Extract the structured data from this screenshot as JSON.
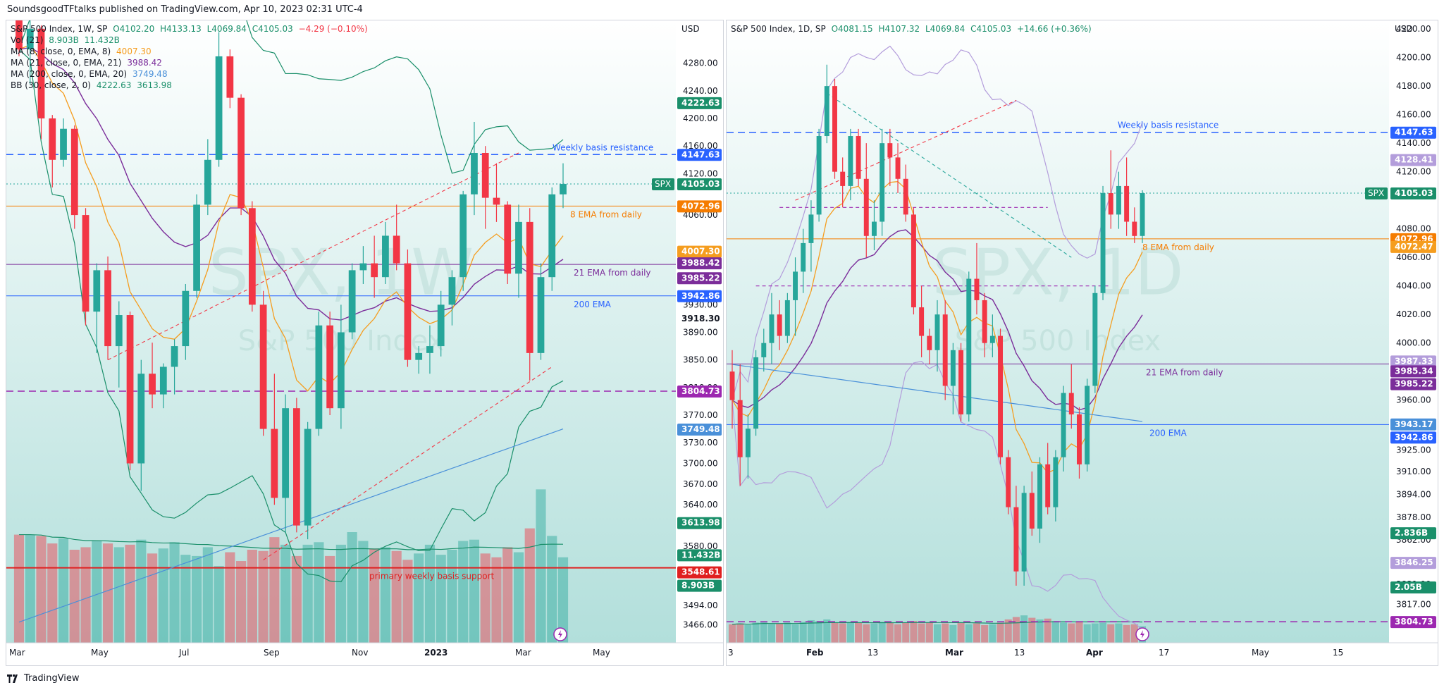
{
  "header": {
    "publisher": "SoundsgoodTFtalks published on TradingView.com, Apr 10, 2023 02:31 UTC-4"
  },
  "footer": {
    "brand": "TradingView"
  },
  "colors": {
    "up": "#26a69a",
    "down": "#f23645",
    "bg_top": "#ffffff",
    "bg_bottom": "#b2dfdb",
    "ema8": "#f59d1f",
    "ema21": "#7b2d9a",
    "ema200": "#4a90d9",
    "bb": "#1a8f6a",
    "resistance": "#2962ff",
    "support_red": "#e02020",
    "purple_dash": "#9c27b0"
  },
  "chart_data": [
    {
      "type": "candlestick",
      "symbol": "S&P 500 Index, 1W, SP",
      "ohlc_readout": {
        "O": "4102.20",
        "H": "4133.13",
        "L": "4069.84",
        "C": "4105.03",
        "change": "−4.29 (−0.10%)"
      },
      "indicators": [
        {
          "label": "Vol (21)",
          "values": [
            "8.903B",
            "11.432B"
          ]
        },
        {
          "label": "MA (8, close, 0, EMA, 8)",
          "values": [
            "4007.30"
          ]
        },
        {
          "label": "MA (21, close, 0, EMA, 21)",
          "values": [
            "3988.42"
          ]
        },
        {
          "label": "MA (200, close, 0, EMA, 20)",
          "values": [
            "3749.48"
          ]
        },
        {
          "label": "BB (30, close, 2, 0)",
          "values": [
            "4222.63",
            "3613.98"
          ]
        }
      ],
      "currency": "USD",
      "watermark": {
        "big": "SPX, 1W",
        "small": "S&P 500 Index"
      },
      "ylim": [
        3440,
        4340
      ],
      "y_ticks": [
        4280,
        4240,
        4200,
        4160,
        4120,
        4060,
        3930,
        3890,
        3850,
        3810,
        3770,
        3730,
        3700,
        3670,
        3640,
        3610,
        3580,
        3494,
        3466
      ],
      "x_ticks": [
        "Mar",
        "May",
        "Jul",
        "Sep",
        "Nov",
        "2023",
        "Mar",
        "May"
      ],
      "price_badges": [
        {
          "value": "4222.63",
          "color": "#1a8f6a"
        },
        {
          "value": "4147.63",
          "color": "#2962ff"
        },
        {
          "value": "4105.03",
          "color": "#1a8f6a",
          "tag": "SPX"
        },
        {
          "value": "4072.96",
          "color": "#f57c00"
        },
        {
          "value": "4007.30",
          "color": "#f59d1f"
        },
        {
          "value": "3988.42",
          "color": "#7b2d9a"
        },
        {
          "value": "3985.22",
          "color": "#7b2d9a"
        },
        {
          "value": "3942.86",
          "color": "#2962ff"
        },
        {
          "value": "3918.30",
          "color": "#ffffff"
        },
        {
          "value": "3804.73",
          "color": "#9c27b0"
        },
        {
          "value": "3749.48",
          "color": "#4a90d9"
        },
        {
          "value": "3613.98",
          "color": "#1a8f6a"
        },
        {
          "value": "11.432B",
          "color": "#1a8f6a"
        },
        {
          "value": "3548.61",
          "color": "#e02020"
        },
        {
          "value": "8.903B",
          "color": "#1a8f6a"
        }
      ],
      "annotations": [
        {
          "text": "Weekly basis resistance",
          "y": 4147.63,
          "color": "#2962ff"
        },
        {
          "text": "8 EMA from daily",
          "y": 4072.96,
          "color": "#f57c00"
        },
        {
          "text": "21 EMA from daily",
          "y": 3988.42,
          "color": "#7b2d9a"
        },
        {
          "text": "200 EMA",
          "y": 3942.86,
          "color": "#2962ff"
        },
        {
          "text": "primary weekly basis support",
          "y": 3548.61,
          "color": "#e02020"
        }
      ],
      "candles": [
        [
          4380,
          4420,
          4290,
          4300
        ],
        [
          4300,
          4345,
          4250,
          4330
        ],
        [
          4330,
          4335,
          4170,
          4200
        ],
        [
          4200,
          4205,
          4100,
          4140
        ],
        [
          4140,
          4200,
          4130,
          4185
        ],
        [
          4185,
          4190,
          4040,
          4060
        ],
        [
          4060,
          4070,
          3900,
          3920
        ],
        [
          3920,
          3990,
          3860,
          3980
        ],
        [
          3980,
          4000,
          3850,
          3870
        ],
        [
          3870,
          3935,
          3810,
          3915
        ],
        [
          3915,
          3920,
          3690,
          3700
        ],
        [
          3700,
          3850,
          3660,
          3830
        ],
        [
          3830,
          3875,
          3780,
          3800
        ],
        [
          3800,
          3845,
          3780,
          3840
        ],
        [
          3840,
          3880,
          3800,
          3870
        ],
        [
          3870,
          3960,
          3850,
          3950
        ],
        [
          3950,
          4090,
          3940,
          4075
        ],
        [
          4075,
          4170,
          4060,
          4140
        ],
        [
          4140,
          4325,
          4130,
          4290
        ],
        [
          4290,
          4300,
          4215,
          4230
        ],
        [
          4230,
          4235,
          4060,
          4070
        ],
        [
          4070,
          4080,
          3920,
          3930
        ],
        [
          3930,
          3950,
          3740,
          3750
        ],
        [
          3750,
          3830,
          3640,
          3650
        ],
        [
          3650,
          3800,
          3600,
          3780
        ],
        [
          3780,
          3795,
          3600,
          3610
        ],
        [
          3610,
          3760,
          3590,
          3750
        ],
        [
          3750,
          3920,
          3740,
          3900
        ],
        [
          3900,
          3920,
          3770,
          3780
        ],
        [
          3780,
          3930,
          3750,
          3890
        ],
        [
          3890,
          3990,
          3880,
          3980
        ],
        [
          3980,
          4015,
          3960,
          3990
        ],
        [
          3990,
          4030,
          3940,
          3970
        ],
        [
          3970,
          4050,
          3960,
          4030
        ],
        [
          4030,
          4075,
          3980,
          3990
        ],
        [
          3990,
          4010,
          3840,
          3850
        ],
        [
          3850,
          3870,
          3830,
          3860
        ],
        [
          3860,
          3900,
          3830,
          3870
        ],
        [
          3870,
          3950,
          3855,
          3930
        ],
        [
          3930,
          3980,
          3900,
          3970
        ],
        [
          3970,
          4095,
          3950,
          4090
        ],
        [
          4090,
          4195,
          4060,
          4150
        ],
        [
          4150,
          4160,
          4040,
          4085
        ],
        [
          4085,
          4135,
          4050,
          4075
        ],
        [
          4075,
          4080,
          3960,
          3975
        ],
        [
          3975,
          4075,
          3940,
          4050
        ],
        [
          4050,
          4070,
          3820,
          3860
        ],
        [
          3860,
          3990,
          3850,
          3970
        ],
        [
          3970,
          4100,
          3950,
          4090
        ],
        [
          4090,
          4135,
          4070,
          4105
        ]
      ],
      "volumes": [
        8.6,
        8.6,
        8.5,
        7.9,
        8.3,
        7.4,
        7.6,
        8.1,
        7.9,
        7.6,
        7.8,
        8.2,
        7.1,
        7.5,
        8.0,
        7.0,
        6.9,
        7.6,
        6.1,
        7.2,
        6.5,
        7.4,
        7.3,
        8.4,
        7.8,
        6.9,
        7.8,
        8.0,
        6.9,
        7.8,
        8.8,
        8.1,
        7.5,
        7.6,
        7.3,
        6.6,
        7.1,
        7.8,
        7.0,
        7.4,
        8.1,
        8.2,
        7.1,
        6.8,
        7.6,
        7.2,
        9.1,
        12.2,
        8.5,
        6.8
      ]
    },
    {
      "type": "candlestick",
      "symbol": "S&P 500 Index, 1D, SP",
      "ohlc_readout": {
        "O": "4081.15",
        "H": "4107.32",
        "L": "4069.84",
        "C": "4105.03",
        "change": "+14.66 (+0.36%)"
      },
      "currency": "USD",
      "watermark": {
        "big": "SPX, 1D",
        "small": "S&P 500 Index"
      },
      "ylim": [
        3790,
        4225
      ],
      "y_ticks": [
        4220,
        4200,
        4180,
        4160,
        4140,
        4120,
        4080,
        4060,
        4040,
        4020,
        4000,
        3960,
        3925,
        3910,
        3894,
        3878,
        3862,
        3831,
        3817
      ],
      "x_ticks": [
        "3",
        "Feb",
        "13",
        "Mar",
        "13",
        "Apr",
        "17",
        "May",
        "15"
      ],
      "price_badges": [
        {
          "value": "4147.63",
          "color": "#2962ff"
        },
        {
          "value": "4128.41",
          "color": "#b39ddb"
        },
        {
          "value": "4105.03",
          "color": "#1a8f6a",
          "tag": "SPX"
        },
        {
          "value": "4072.96",
          "color": "#f57c00"
        },
        {
          "value": "4072.47",
          "color": "#f59d1f"
        },
        {
          "value": "3987.33",
          "color": "#b39ddb"
        },
        {
          "value": "3985.34",
          "color": "#7b2d9a"
        },
        {
          "value": "3985.22",
          "color": "#7b2d9a"
        },
        {
          "value": "3943.17",
          "color": "#4a90d9"
        },
        {
          "value": "3942.86",
          "color": "#2962ff"
        },
        {
          "value": "2.836B",
          "color": "#1a8f6a"
        },
        {
          "value": "3846.25",
          "color": "#b39ddb"
        },
        {
          "value": "2.05B",
          "color": "#1a8f6a"
        },
        {
          "value": "3804.73",
          "color": "#9c27b0"
        }
      ],
      "annotations": [
        {
          "text": "Weekly basis resistance",
          "y": 4147.63,
          "color": "#2962ff"
        },
        {
          "text": "8 EMA from daily",
          "y": 4072.96,
          "color": "#f57c00"
        },
        {
          "text": "21 EMA from daily",
          "y": 3985.34,
          "color": "#7b2d9a"
        },
        {
          "text": "200 EMA",
          "y": 3942.86,
          "color": "#2962ff"
        }
      ],
      "candles": [
        [
          3980,
          3995,
          3940,
          3960
        ],
        [
          3960,
          3985,
          3900,
          3920
        ],
        [
          3920,
          3950,
          3905,
          3940
        ],
        [
          3940,
          3995,
          3935,
          3990
        ],
        [
          3990,
          4010,
          3980,
          4000
        ],
        [
          4000,
          4035,
          3985,
          4020
        ],
        [
          4020,
          4030,
          3995,
          4005
        ],
        [
          4005,
          4035,
          4000,
          4030
        ],
        [
          4030,
          4060,
          4005,
          4050
        ],
        [
          4050,
          4080,
          4035,
          4070
        ],
        [
          4070,
          4100,
          4050,
          4090
        ],
        [
          4090,
          4150,
          4085,
          4145
        ],
        [
          4145,
          4195,
          4140,
          4180
        ],
        [
          4180,
          4185,
          4115,
          4120
        ],
        [
          4120,
          4130,
          4095,
          4110
        ],
        [
          4110,
          4150,
          4100,
          4145
        ],
        [
          4145,
          4150,
          4110,
          4115
        ],
        [
          4115,
          4140,
          4060,
          4075
        ],
        [
          4075,
          4100,
          4065,
          4085
        ],
        [
          4085,
          4150,
          4075,
          4140
        ],
        [
          4140,
          4150,
          4110,
          4130
        ],
        [
          4130,
          4140,
          4105,
          4115
        ],
        [
          4115,
          4125,
          4085,
          4090
        ],
        [
          4090,
          4095,
          4020,
          4025
        ],
        [
          4025,
          4040,
          3990,
          4005
        ],
        [
          4005,
          4010,
          3985,
          3995
        ],
        [
          3995,
          4030,
          3980,
          4020
        ],
        [
          4020,
          4030,
          3960,
          3970
        ],
        [
          3970,
          4000,
          3950,
          3995
        ],
        [
          3995,
          4000,
          3945,
          3950
        ],
        [
          3950,
          4050,
          3945,
          4045
        ],
        [
          4045,
          4070,
          4020,
          4030
        ],
        [
          4030,
          4035,
          3990,
          4000
        ],
        [
          4000,
          4020,
          3990,
          4005
        ],
        [
          4005,
          4010,
          3915,
          3920
        ],
        [
          3920,
          3925,
          3880,
          3885
        ],
        [
          3885,
          3900,
          3830,
          3840
        ],
        [
          3840,
          3900,
          3830,
          3895
        ],
        [
          3895,
          3910,
          3865,
          3870
        ],
        [
          3870,
          3920,
          3860,
          3915
        ],
        [
          3915,
          3930,
          3880,
          3885
        ],
        [
          3885,
          3925,
          3875,
          3920
        ],
        [
          3920,
          3970,
          3910,
          3965
        ],
        [
          3965,
          3985,
          3940,
          3950
        ],
        [
          3950,
          3955,
          3905,
          3915
        ],
        [
          3915,
          3975,
          3910,
          3970
        ],
        [
          3970,
          4040,
          3965,
          4035
        ],
        [
          4035,
          4110,
          4030,
          4105
        ],
        [
          4105,
          4135,
          4080,
          4090
        ],
        [
          4090,
          4120,
          4080,
          4110
        ],
        [
          4110,
          4130,
          4075,
          4085
        ],
        [
          4085,
          4095,
          4070,
          4075
        ],
        [
          4075,
          4107,
          4070,
          4105
        ]
      ],
      "volumes": [
        2.3,
        2.4,
        2.2,
        2.5,
        2.6,
        2.3,
        2.4,
        2.5,
        2.3,
        2.6,
        2.8,
        2.7,
        2.9,
        2.5,
        2.4,
        2.6,
        2.5,
        2.3,
        2.4,
        2.6,
        2.5,
        2.3,
        2.5,
        2.7,
        2.4,
        2.5,
        2.3,
        2.4,
        2.2,
        2.5,
        2.3,
        2.4,
        2.2,
        2.3,
        2.5,
        2.9,
        3.2,
        3.4,
        3.1,
        2.9,
        3.0,
        2.7,
        2.5,
        2.4,
        2.6,
        2.3,
        2.4,
        2.5,
        2.3,
        2.4,
        2.2,
        2.3,
        2.05
      ]
    }
  ]
}
